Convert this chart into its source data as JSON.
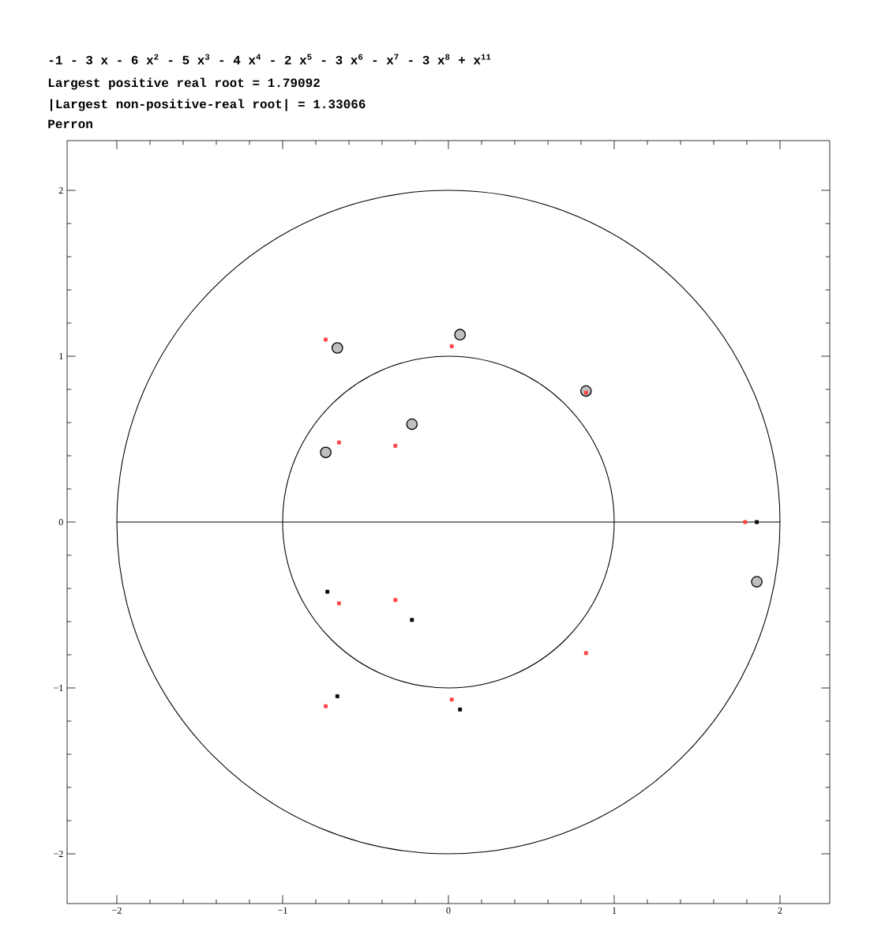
{
  "chart_data": {
    "type": "scatter",
    "title": "-1 - 3 x - 6 x$^{2}$ - 5 x$^{3}$ - 4 x$^{4}$ - 2 x$^{5}$ - 3 x$^{6}$ - x$^{7}$ - 3 x$^{8}$ + x$^{11}$",
    "annotations": [
      "Largest positive real root = 1.79092",
      "|Largest non-positive-real root| = 1.33066",
      "Perron"
    ],
    "xlim": [
      -2.3,
      2.3
    ],
    "ylim": [
      -2.3,
      2.3
    ],
    "xticks": [
      {
        "value": -2,
        "label": "−2"
      },
      {
        "value": -1,
        "label": "−1"
      },
      0,
      1,
      2
    ],
    "yticks": [
      {
        "value": -2,
        "label": "−2"
      },
      {
        "value": -1,
        "label": "−1"
      },
      0,
      1,
      2
    ],
    "series": [
      {
        "type": "line",
        "color": "#000000",
        "line_style": "solid",
        "marker": "none",
        "x": [
          -2,
          2
        ],
        "values": [
          0,
          0
        ]
      },
      {
        "type": "scatter",
        "color": "#000000",
        "marker": "circle",
        "x": [
          -0.67,
          0.07,
          0.83,
          -0.22,
          -0.74,
          1.86
        ],
        "values": [
          1.05,
          1.13,
          0.79,
          0.59,
          0.42,
          -0.36
        ]
      },
      {
        "type": "scatter",
        "color": "#ff4040",
        "marker": "square",
        "x": [
          -0.74,
          0.02,
          0.83,
          -0.66,
          -0.32,
          1.79,
          -0.32,
          -0.66,
          0.83,
          0.02,
          -0.74
        ],
        "values": [
          1.1,
          1.06,
          0.78,
          0.48,
          0.46,
          0,
          -0.47,
          -0.49,
          -0.79,
          -1.07,
          -1.11
        ]
      },
      {
        "type": "scatter",
        "color": "#000000",
        "marker": "square",
        "x": [
          -0.73,
          -0.22,
          -0.67,
          0.07,
          1.86
        ],
        "values": [
          -0.42,
          -0.59,
          -1.05,
          -1.13,
          0
        ]
      }
    ]
  }
}
